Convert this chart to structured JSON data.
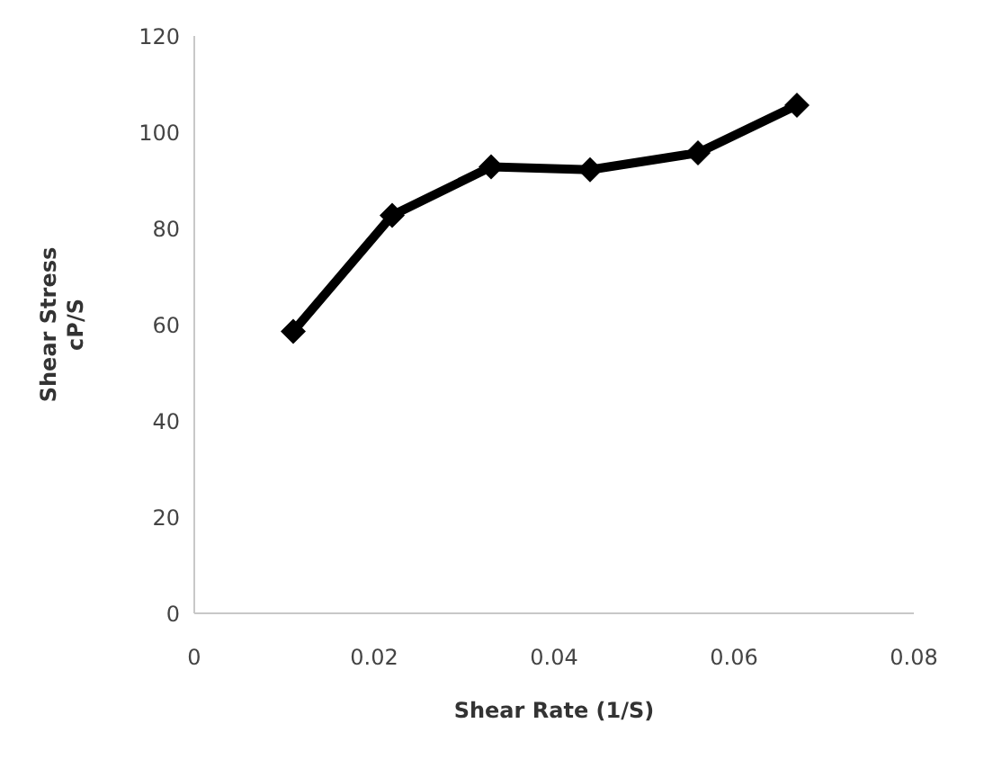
{
  "chart_data": {
    "type": "line",
    "xlabel": "Shear Rate (1/S)",
    "ylabel": "Shear Stress\ncP/S",
    "x": [
      0.011,
      0.022,
      0.033,
      0.044,
      0.056,
      0.067
    ],
    "series": [
      {
        "color": "#000000",
        "values": [
          58.6,
          82.7,
          92.8,
          92.2,
          95.7,
          105.6
        ]
      }
    ],
    "xlim": [
      0,
      0.08
    ],
    "xticks": [
      0,
      0.02,
      0.04,
      0.06,
      0.08
    ],
    "ylim": [
      0,
      120
    ],
    "yticks": [
      0,
      20,
      40,
      60,
      80,
      100,
      120
    ],
    "grid": false,
    "legend": false,
    "marker": "diamond",
    "line_style": "solid"
  }
}
